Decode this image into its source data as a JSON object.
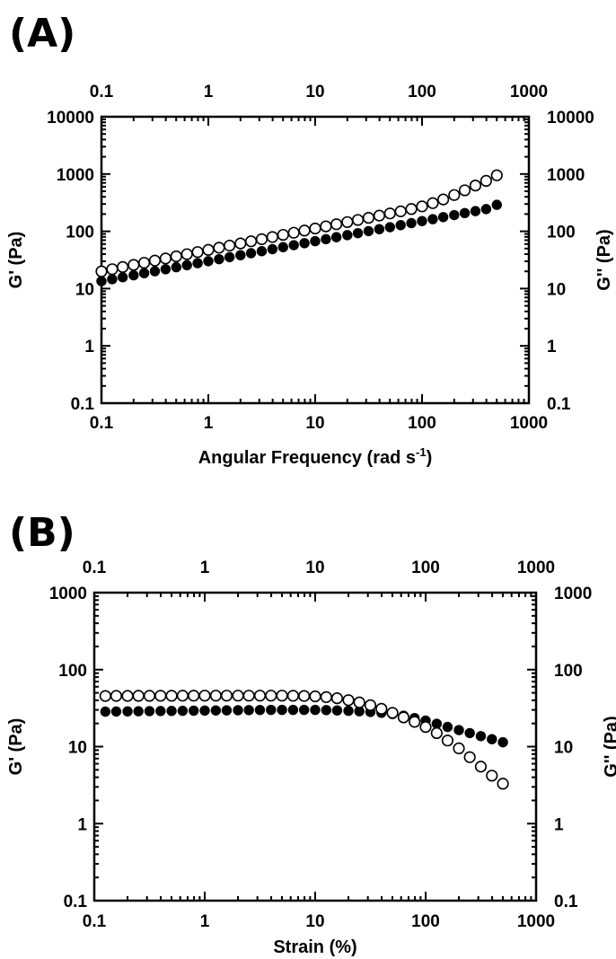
{
  "chart_data": [
    {
      "panel_label": "(A)",
      "type": "scatter",
      "xscale": "log",
      "yscale": "log",
      "xlim": [
        0.1,
        1000
      ],
      "ylim": [
        0.1,
        10000
      ],
      "x_ticks": [
        "0.1",
        "1",
        "10",
        "100",
        "1000"
      ],
      "y_ticks": [
        "0.1",
        "1",
        "10",
        "100",
        "1000",
        "10000"
      ],
      "xlabel": "Angular Frequency (rad s-1)",
      "xlabel_main": "Angular Frequency (rad s",
      "xlabel_sup": "-1",
      "xlabel_end": ")",
      "ylabel_left": "G' (Pa)",
      "ylabel_right": "G'' (Pa)",
      "series": [
        {
          "name": "G'",
          "marker": "filled-circle",
          "x": [
            0.1,
            0.126,
            0.158,
            0.2,
            0.251,
            0.316,
            0.398,
            0.501,
            0.631,
            0.794,
            1,
            1.26,
            1.58,
            2,
            2.51,
            3.16,
            3.98,
            5.01,
            6.31,
            7.94,
            10,
            12.6,
            15.8,
            20,
            25.1,
            31.6,
            39.8,
            50.1,
            63.1,
            79.4,
            100,
            126,
            158,
            200,
            251,
            316,
            398,
            501
          ],
          "y": [
            13.5,
            14.6,
            15.8,
            17.1,
            18.6,
            20.1,
            21.8,
            23.6,
            25.6,
            27.8,
            30.1,
            32.6,
            35.4,
            38.3,
            41.5,
            45,
            48.8,
            52.9,
            57.3,
            62.1,
            67.3,
            72.9,
            79,
            85.7,
            92.9,
            100.7,
            109,
            118,
            128,
            139,
            151,
            163,
            177,
            192,
            208,
            225,
            244,
            290
          ]
        },
        {
          "name": "G''",
          "marker": "open-circle",
          "x": [
            0.1,
            0.126,
            0.158,
            0.2,
            0.251,
            0.316,
            0.398,
            0.501,
            0.631,
            0.794,
            1,
            1.26,
            1.58,
            2,
            2.51,
            3.16,
            3.98,
            5.01,
            6.31,
            7.94,
            10,
            12.6,
            15.8,
            20,
            25.1,
            31.6,
            39.8,
            50.1,
            63.1,
            79.4,
            100,
            126,
            158,
            200,
            251,
            316,
            398,
            501
          ],
          "y": [
            20,
            21.8,
            23.8,
            25.9,
            28.2,
            30.8,
            33.6,
            36.6,
            39.9,
            43.5,
            47.4,
            51.7,
            56.3,
            61.4,
            66.9,
            72.9,
            79.5,
            86.7,
            94.5,
            103,
            112,
            122,
            133,
            145,
            158,
            172,
            188,
            205,
            223,
            245,
            272,
            310,
            360,
            430,
            520,
            630,
            760,
            950
          ]
        }
      ]
    },
    {
      "panel_label": "(B)",
      "type": "scatter",
      "xscale": "log",
      "yscale": "log",
      "xlim": [
        0.1,
        1000
      ],
      "ylim": [
        0.1,
        1000
      ],
      "x_ticks": [
        "0.1",
        "1",
        "10",
        "100",
        "1000"
      ],
      "y_ticks": [
        "0.1",
        "1",
        "10",
        "100",
        "1000"
      ],
      "xlabel": "Strain (%)",
      "ylabel_left": "G' (Pa)",
      "ylabel_right": "G'' (Pa)",
      "series": [
        {
          "name": "G'",
          "marker": "filled-circle",
          "x": [
            0.126,
            0.158,
            0.2,
            0.251,
            0.316,
            0.398,
            0.501,
            0.631,
            0.794,
            1,
            1.26,
            1.58,
            2,
            2.51,
            3.16,
            3.98,
            5.01,
            6.31,
            7.94,
            10,
            12.6,
            15.8,
            20,
            25.1,
            31.6,
            39.8,
            50.1,
            63.1,
            79.4,
            100,
            126,
            158,
            200,
            251,
            316,
            398,
            501
          ],
          "y": [
            28.5,
            28.6,
            28.7,
            28.8,
            28.9,
            29,
            29.1,
            29.2,
            29.3,
            29.4,
            29.5,
            29.6,
            29.7,
            29.8,
            29.9,
            30,
            30,
            30,
            30,
            30,
            29.8,
            29.5,
            29.2,
            28.8,
            28.2,
            27.5,
            26.5,
            25.2,
            23.5,
            21.8,
            19.8,
            18,
            16.4,
            15,
            13.7,
            12.5,
            11.4
          ]
        },
        {
          "name": "G''",
          "marker": "open-circle",
          "x": [
            0.126,
            0.158,
            0.2,
            0.251,
            0.316,
            0.398,
            0.501,
            0.631,
            0.794,
            1,
            1.26,
            1.58,
            2,
            2.51,
            3.16,
            3.98,
            5.01,
            6.31,
            7.94,
            10,
            12.6,
            15.8,
            20,
            25.1,
            31.6,
            39.8,
            50.1,
            63.1,
            79.4,
            100,
            126,
            158,
            200,
            251,
            316,
            398,
            501
          ],
          "y": [
            45.5,
            45.6,
            45.6,
            45.7,
            45.7,
            45.8,
            45.8,
            45.9,
            45.9,
            46,
            46,
            46,
            46,
            46,
            46,
            46,
            46,
            45.8,
            45.5,
            45,
            44,
            42.5,
            40.2,
            37.5,
            34.5,
            31,
            27.5,
            24,
            21,
            18,
            15,
            12,
            9.5,
            7.3,
            5.5,
            4.2,
            3.3
          ]
        }
      ]
    }
  ]
}
